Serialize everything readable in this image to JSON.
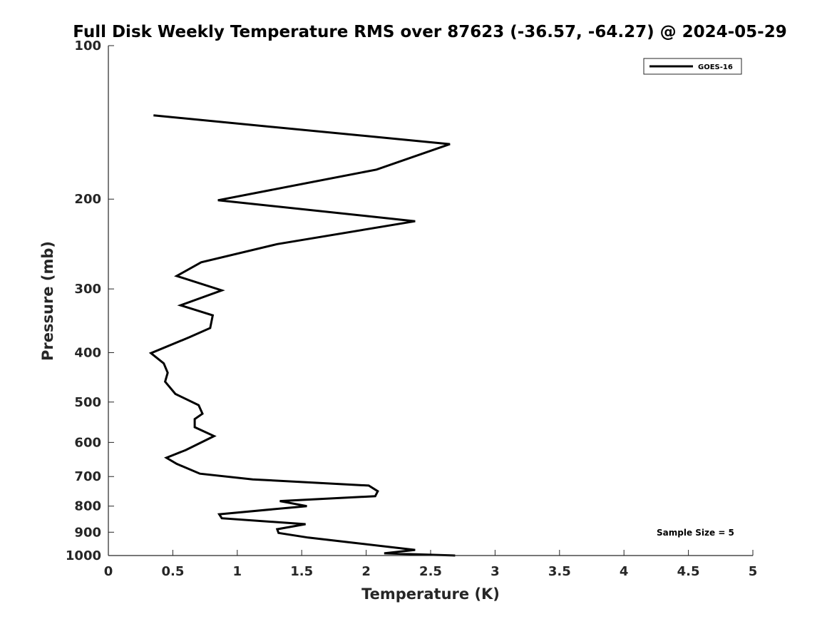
{
  "chart_data": {
    "type": "line",
    "title": "Full Disk Weekly Temperature RMS over 87623 (-36.57, -64.27) @ 2024-05-29",
    "xlabel": "Temperature (K)",
    "ylabel": "Pressure (mb)",
    "xlim": [
      0,
      5
    ],
    "ylim": [
      100,
      1000
    ],
    "y_scale": "log",
    "y_reversed": true,
    "grid": false,
    "legend_position": "top-right",
    "x_ticks": [
      "0",
      "0.5",
      "1",
      "1.5",
      "2",
      "2.5",
      "3",
      "3.5",
      "4",
      "4.5",
      "5"
    ],
    "y_ticks": [
      "100",
      "200",
      "300",
      "400",
      "500",
      "600",
      "700",
      "800",
      "900",
      "1000"
    ],
    "series": [
      {
        "name": "GOES-16",
        "color": "#000000",
        "points": [
          [
            0.35,
            137
          ],
          [
            2.65,
            156
          ],
          [
            2.08,
            175
          ],
          [
            0.85,
            201
          ],
          [
            2.38,
            221
          ],
          [
            1.31,
            245
          ],
          [
            0.72,
            266
          ],
          [
            0.53,
            283
          ],
          [
            0.88,
            302
          ],
          [
            0.56,
            323
          ],
          [
            0.81,
            338
          ],
          [
            0.79,
            358
          ],
          [
            0.63,
            373
          ],
          [
            0.33,
            401
          ],
          [
            0.43,
            420
          ],
          [
            0.46,
            438
          ],
          [
            0.44,
            456
          ],
          [
            0.52,
            482
          ],
          [
            0.7,
            507
          ],
          [
            0.73,
            527
          ],
          [
            0.67,
            540
          ],
          [
            0.67,
            560
          ],
          [
            0.82,
            583
          ],
          [
            0.6,
            621
          ],
          [
            0.45,
            643
          ],
          [
            0.53,
            661
          ],
          [
            0.71,
            691
          ],
          [
            1.12,
            709
          ],
          [
            2.02,
            729
          ],
          [
            2.09,
            748
          ],
          [
            2.07,
            765
          ],
          [
            1.33,
            782
          ],
          [
            1.54,
            800
          ],
          [
            0.86,
            830
          ],
          [
            0.88,
            845
          ],
          [
            1.53,
            868
          ],
          [
            1.31,
            888
          ],
          [
            1.32,
            903
          ],
          [
            1.55,
            922
          ],
          [
            2.38,
            975
          ],
          [
            2.14,
            990
          ],
          [
            2.69,
            1000
          ]
        ]
      }
    ],
    "annotation": "Sample Size = 5"
  }
}
